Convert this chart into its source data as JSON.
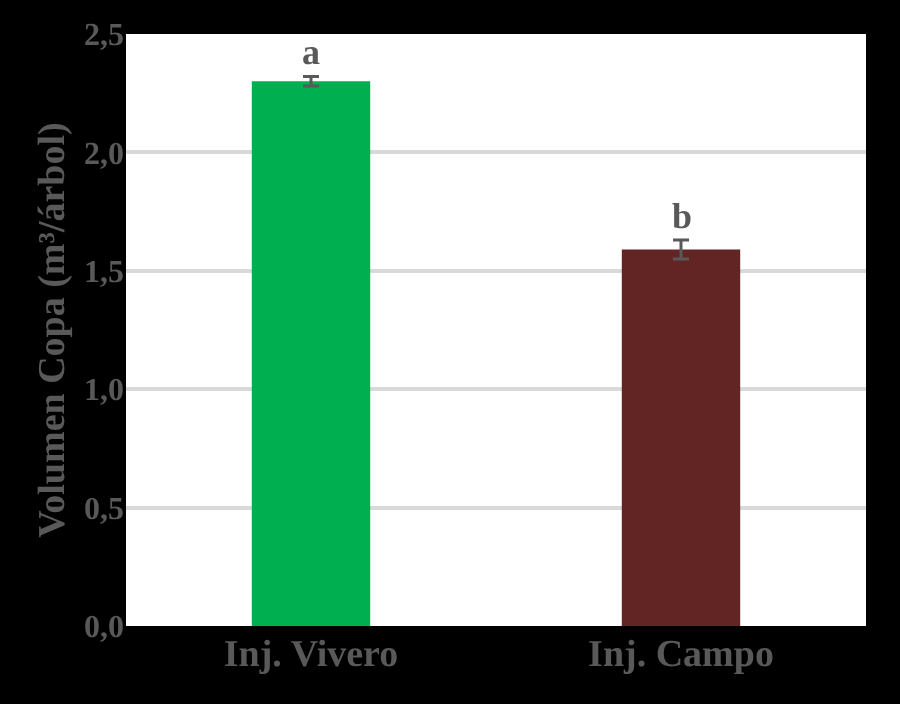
{
  "chart_data": {
    "type": "bar",
    "ylabel": "Volumen Copa (m³/árbol)",
    "categories": [
      "Inj. Vivero",
      "Inj. Campo"
    ],
    "values": [
      2.3,
      1.59
    ],
    "colors": [
      "#00b050",
      "#632523"
    ],
    "errors": [
      0.02,
      0.04
    ],
    "ylim": [
      0,
      2.5
    ],
    "yticks": [
      {
        "value": 0,
        "label": "0,0"
      },
      {
        "value": 0.5,
        "label": "0,5"
      },
      {
        "value": 1.0,
        "label": "1,0"
      },
      {
        "value": 1.5,
        "label": "1,5"
      },
      {
        "value": 2.0,
        "label": "2,0"
      },
      {
        "value": 2.5,
        "label": "2,5"
      }
    ],
    "grid": "y",
    "annotations": [
      {
        "text": "a",
        "x": "Inj. Vivero",
        "y": 2.32
      },
      {
        "text": "b",
        "x": "Inj. Campo",
        "y": 1.63
      }
    ]
  }
}
